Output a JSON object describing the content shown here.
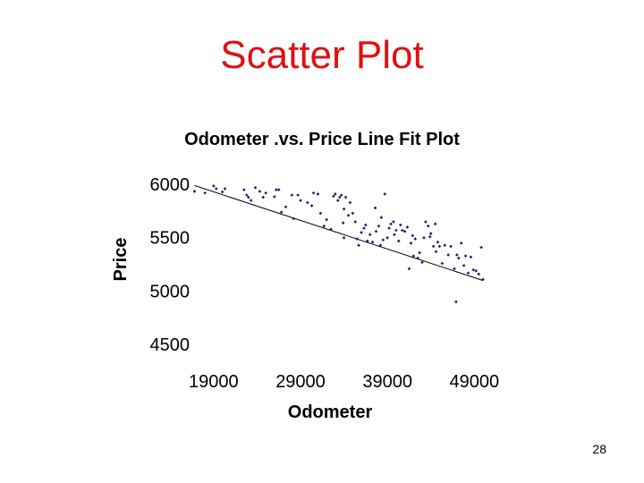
{
  "slide": {
    "title": "Scatter Plot",
    "title_color": "#e01010",
    "page_number": "28"
  },
  "chart_data": {
    "type": "scatter",
    "title": "Odometer .vs. Price Line Fit  Plot",
    "xlabel": "Odometer",
    "ylabel": "Price",
    "xlim": [
      15000,
      50000
    ],
    "ylim": [
      4500,
      6000
    ],
    "xticks": [
      "19000",
      "29000",
      "39000",
      "49000"
    ],
    "yticks": [
      "6000",
      "5500",
      "5000",
      "4500"
    ],
    "grid": false,
    "legend": "none",
    "point_color": "#1a1a6e",
    "series": [
      {
        "values": [
          [
            16800,
            5925
          ],
          [
            18000,
            5910
          ],
          [
            19000,
            5975
          ],
          [
            19300,
            5950
          ],
          [
            20000,
            5920
          ],
          [
            20300,
            5950
          ],
          [
            22500,
            5940
          ],
          [
            22800,
            5890
          ],
          [
            23000,
            5870
          ],
          [
            23300,
            5840
          ],
          [
            23800,
            5960
          ],
          [
            24300,
            5925
          ],
          [
            24700,
            5870
          ],
          [
            25000,
            5910
          ],
          [
            26000,
            5875
          ],
          [
            26200,
            5940
          ],
          [
            26500,
            5940
          ],
          [
            26800,
            5730
          ],
          [
            27300,
            5780
          ],
          [
            28000,
            5890
          ],
          [
            28200,
            5670
          ],
          [
            28700,
            5890
          ],
          [
            29000,
            5840
          ],
          [
            29800,
            5820
          ],
          [
            30300,
            5790
          ],
          [
            30500,
            5910
          ],
          [
            31000,
            5900
          ],
          [
            31300,
            5720
          ],
          [
            31700,
            5600
          ],
          [
            32000,
            5660
          ],
          [
            32500,
            5570
          ],
          [
            32800,
            5880
          ],
          [
            33000,
            5900
          ],
          [
            33300,
            5840
          ],
          [
            33500,
            5870
          ],
          [
            33700,
            5890
          ],
          [
            33900,
            5630
          ],
          [
            34000,
            5760
          ],
          [
            34200,
            5870
          ],
          [
            34500,
            5700
          ],
          [
            34700,
            5820
          ],
          [
            35000,
            5720
          ],
          [
            35300,
            5640
          ],
          [
            35700,
            5420
          ],
          [
            36000,
            5540
          ],
          [
            36300,
            5580
          ],
          [
            36500,
            5610
          ],
          [
            36700,
            5460
          ],
          [
            37000,
            5520
          ],
          [
            37300,
            5450
          ],
          [
            37600,
            5770
          ],
          [
            37700,
            5550
          ],
          [
            38000,
            5600
          ],
          [
            38300,
            5680
          ],
          [
            38500,
            5470
          ],
          [
            38700,
            5900
          ],
          [
            39000,
            5490
          ],
          [
            39200,
            5580
          ],
          [
            39400,
            5620
          ],
          [
            39700,
            5640
          ],
          [
            40000,
            5560
          ],
          [
            40300,
            5460
          ],
          [
            40500,
            5610
          ],
          [
            40700,
            5560
          ],
          [
            41000,
            5550
          ],
          [
            41300,
            5590
          ],
          [
            41500,
            5200
          ],
          [
            41700,
            5440
          ],
          [
            41900,
            5510
          ],
          [
            42000,
            5320
          ],
          [
            42200,
            5480
          ],
          [
            42500,
            5300
          ],
          [
            42700,
            5350
          ],
          [
            43000,
            5260
          ],
          [
            43200,
            5490
          ],
          [
            43400,
            5640
          ],
          [
            43700,
            5600
          ],
          [
            43900,
            5500
          ],
          [
            44000,
            5530
          ],
          [
            44300,
            5410
          ],
          [
            44500,
            5620
          ],
          [
            44800,
            5450
          ],
          [
            45000,
            5410
          ],
          [
            45300,
            5250
          ],
          [
            45600,
            5420
          ],
          [
            46000,
            5330
          ],
          [
            46300,
            5410
          ],
          [
            46700,
            5200
          ],
          [
            47000,
            5330
          ],
          [
            47200,
            5300
          ],
          [
            47500,
            5440
          ],
          [
            47800,
            5230
          ],
          [
            48000,
            5320
          ],
          [
            48300,
            5160
          ],
          [
            48600,
            5310
          ],
          [
            48900,
            5190
          ],
          [
            49200,
            5180
          ],
          [
            49500,
            5150
          ],
          [
            50000,
            5100
          ],
          [
            49800,
            5400
          ],
          [
            34000,
            5490
          ],
          [
            35500,
            5480
          ],
          [
            38200,
            5420
          ],
          [
            39800,
            5520
          ],
          [
            44600,
            5360
          ],
          [
            46900,
            4890
          ]
        ]
      }
    ],
    "fit_line": {
      "x": [
        16800,
        50000
      ],
      "y": [
        5980,
        5090
      ]
    }
  }
}
